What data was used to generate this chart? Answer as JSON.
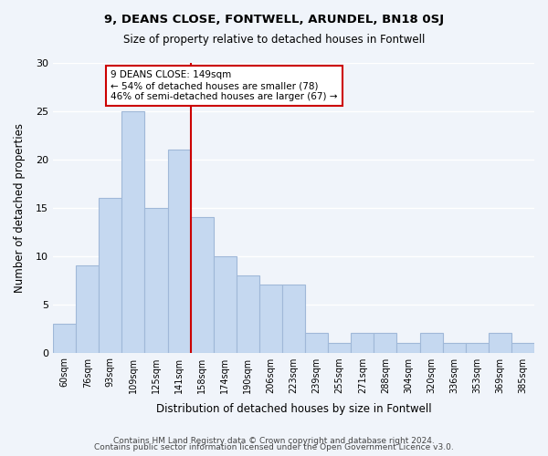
{
  "title1": "9, DEANS CLOSE, FONTWELL, ARUNDEL, BN18 0SJ",
  "title2": "Size of property relative to detached houses in Fontwell",
  "xlabel": "Distribution of detached houses by size in Fontwell",
  "ylabel": "Number of detached properties",
  "bar_labels": [
    "60sqm",
    "76sqm",
    "93sqm",
    "109sqm",
    "125sqm",
    "141sqm",
    "158sqm",
    "174sqm",
    "190sqm",
    "206sqm",
    "223sqm",
    "239sqm",
    "255sqm",
    "271sqm",
    "288sqm",
    "304sqm",
    "320sqm",
    "336sqm",
    "353sqm",
    "369sqm",
    "385sqm"
  ],
  "bar_values": [
    3,
    9,
    16,
    25,
    15,
    21,
    14,
    10,
    8,
    7,
    7,
    2,
    1,
    2,
    2,
    1,
    2,
    1,
    1,
    2,
    1
  ],
  "bar_color": "#c5d8f0",
  "bar_edge_color": "#a0b8d8",
  "vline_x": 5.5,
  "vline_color": "#cc0000",
  "annotation_title": "9 DEANS CLOSE: 149sqm",
  "annotation_line1": "← 54% of detached houses are smaller (78)",
  "annotation_line2": "46% of semi-detached houses are larger (67) →",
  "annotation_box_color": "#ffffff",
  "annotation_box_edge": "#cc0000",
  "ylim": [
    0,
    30
  ],
  "yticks": [
    0,
    5,
    10,
    15,
    20,
    25,
    30
  ],
  "footer1": "Contains HM Land Registry data © Crown copyright and database right 2024.",
  "footer2": "Contains public sector information licensed under the Open Government Licence v3.0.",
  "background_color": "#f0f4fa",
  "grid_color": "#ffffff"
}
